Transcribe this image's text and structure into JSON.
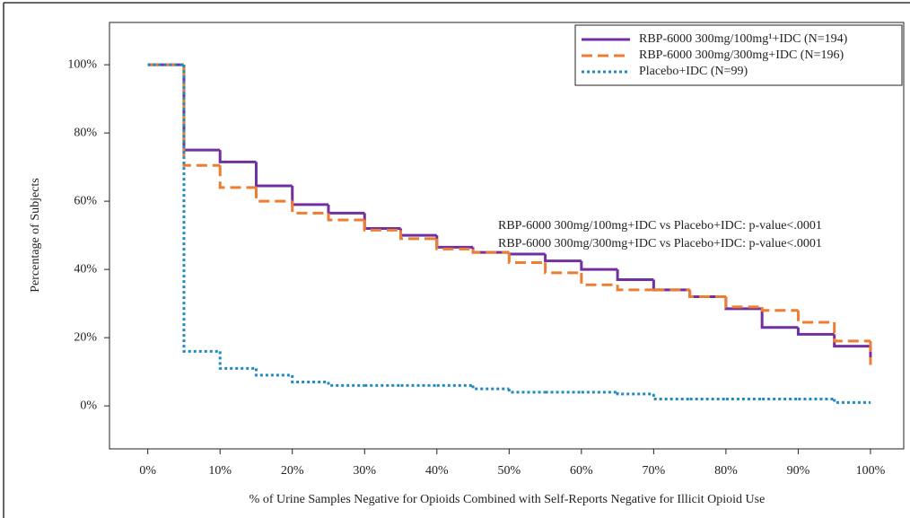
{
  "chart_data": {
    "type": "step",
    "x": [
      0,
      5,
      10,
      15,
      20,
      25,
      30,
      35,
      40,
      45,
      50,
      55,
      60,
      65,
      70,
      75,
      80,
      85,
      90,
      95,
      100
    ],
    "series": [
      {
        "name": "RBP-6000 300mg/100mg¹+IDC (N=194)",
        "color": "#7030a0",
        "dash": "solid",
        "values": [
          100,
          75,
          71.5,
          64.5,
          59,
          56.5,
          52,
          50,
          46.5,
          45,
          44.5,
          42.5,
          40,
          37,
          34,
          32,
          28.5,
          23,
          21,
          17.5,
          14
        ]
      },
      {
        "name": "RBP-6000 300mg/300mg+IDC (N=196)",
        "color": "#ed7d31",
        "dash": "dashed",
        "values": [
          100,
          70.5,
          64,
          60,
          56.5,
          54.5,
          51.5,
          49,
          46,
          45,
          42,
          39,
          35.5,
          34,
          34,
          32,
          29,
          28,
          24.5,
          19,
          12
        ]
      },
      {
        "name": "Placebo+IDC (N=99)",
        "color": "#1f8bbf",
        "dash": "dotted",
        "values": [
          100,
          16,
          11,
          9,
          7,
          6,
          6,
          6,
          6,
          5,
          4,
          4,
          4,
          3.5,
          2,
          2,
          2,
          2,
          2,
          1,
          1
        ]
      }
    ],
    "annotations": [
      "RBP-6000 300mg/100mg+IDC vs Placebo+IDC: p-value<.0001",
      "RBP-6000 300mg/300mg+IDC vs Placebo+IDC: p-value<.0001"
    ],
    "xlabel": "% of Urine Samples Negative for Opioids Combined with Self-Reports Negative for Illicit Opioid Use",
    "ylabel": "Percentage of Subjects",
    "xlim": [
      -5.3,
      104.6
    ],
    "ylim": [
      -12.6,
      112.4
    ],
    "xticks": [
      {
        "value": 0,
        "label": "0%"
      },
      {
        "value": 10,
        "label": "10%"
      },
      {
        "value": 20,
        "label": "20%"
      },
      {
        "value": 30,
        "label": "30%"
      },
      {
        "value": 40,
        "label": "40%"
      },
      {
        "value": 50,
        "label": "50%"
      },
      {
        "value": 60,
        "label": "60%"
      },
      {
        "value": 70,
        "label": "70%"
      },
      {
        "value": 80,
        "label": "80%"
      },
      {
        "value": 90,
        "label": "90%"
      },
      {
        "value": 100,
        "label": "100%"
      }
    ],
    "yticks": [
      {
        "value": 0,
        "label": "0%"
      },
      {
        "value": 20,
        "label": "20%"
      },
      {
        "value": 40,
        "label": "40%"
      },
      {
        "value": 60,
        "label": "60%"
      },
      {
        "value": 80,
        "label": "80%"
      },
      {
        "value": 100,
        "label": "100%"
      }
    ],
    "legend": "upper right"
  }
}
